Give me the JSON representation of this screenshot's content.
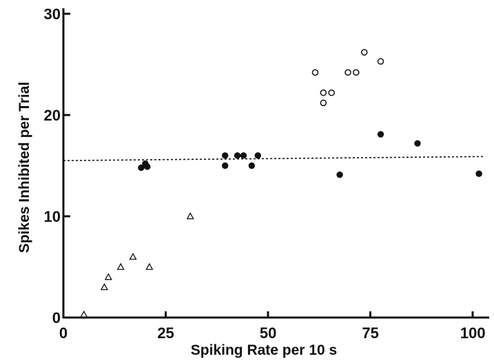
{
  "chart_data": {
    "type": "scatter",
    "title": "",
    "xlabel": "Spiking Rate per 10 s",
    "ylabel": "Spikes Inhibited per Trial",
    "xlim": [
      0,
      104
    ],
    "ylim": [
      0,
      30
    ],
    "x_ticks": [
      {
        "value": 0,
        "label": "0"
      },
      {
        "value": 25,
        "label": "25"
      },
      {
        "value": 50,
        "label": "50"
      },
      {
        "value": 75,
        "label": "75"
      },
      {
        "value": 100,
        "label": "100"
      }
    ],
    "y_ticks": [
      {
        "value": 0,
        "label": "0"
      },
      {
        "value": 10,
        "label": "10"
      },
      {
        "value": 20,
        "label": "20"
      },
      {
        "value": 30,
        "label": "30"
      }
    ],
    "grid": false,
    "legend": "none",
    "reference_line": {
      "style": "dotted",
      "x": [
        0,
        104
      ],
      "y": [
        15.5,
        15.9
      ]
    },
    "series": [
      {
        "marker": "triangle-open",
        "points": [
          {
            "x": 5,
            "y": 0.3
          },
          {
            "x": 10,
            "y": 3
          },
          {
            "x": 11,
            "y": 4
          },
          {
            "x": 14,
            "y": 5
          },
          {
            "x": 17,
            "y": 6
          },
          {
            "x": 21,
            "y": 5
          },
          {
            "x": 31,
            "y": 10
          }
        ]
      },
      {
        "marker": "circle-filled",
        "points": [
          {
            "x": 19,
            "y": 14.8
          },
          {
            "x": 20,
            "y": 15.2
          },
          {
            "x": 20.5,
            "y": 14.9
          },
          {
            "x": 39.5,
            "y": 16
          },
          {
            "x": 39.5,
            "y": 15
          },
          {
            "x": 42.5,
            "y": 16
          },
          {
            "x": 44,
            "y": 16
          },
          {
            "x": 46,
            "y": 15
          },
          {
            "x": 47.5,
            "y": 16
          },
          {
            "x": 67.5,
            "y": 14.1
          },
          {
            "x": 77.5,
            "y": 18.1
          },
          {
            "x": 86.5,
            "y": 17.2
          },
          {
            "x": 101.5,
            "y": 14.2
          }
        ]
      },
      {
        "marker": "circle-open",
        "points": [
          {
            "x": 61.5,
            "y": 24.2
          },
          {
            "x": 63.5,
            "y": 22.2
          },
          {
            "x": 63.5,
            "y": 21.2
          },
          {
            "x": 65.5,
            "y": 22.2
          },
          {
            "x": 69.5,
            "y": 24.2
          },
          {
            "x": 71.5,
            "y": 24.2
          },
          {
            "x": 73.5,
            "y": 26.2
          },
          {
            "x": 77.5,
            "y": 25.3
          }
        ]
      }
    ]
  }
}
